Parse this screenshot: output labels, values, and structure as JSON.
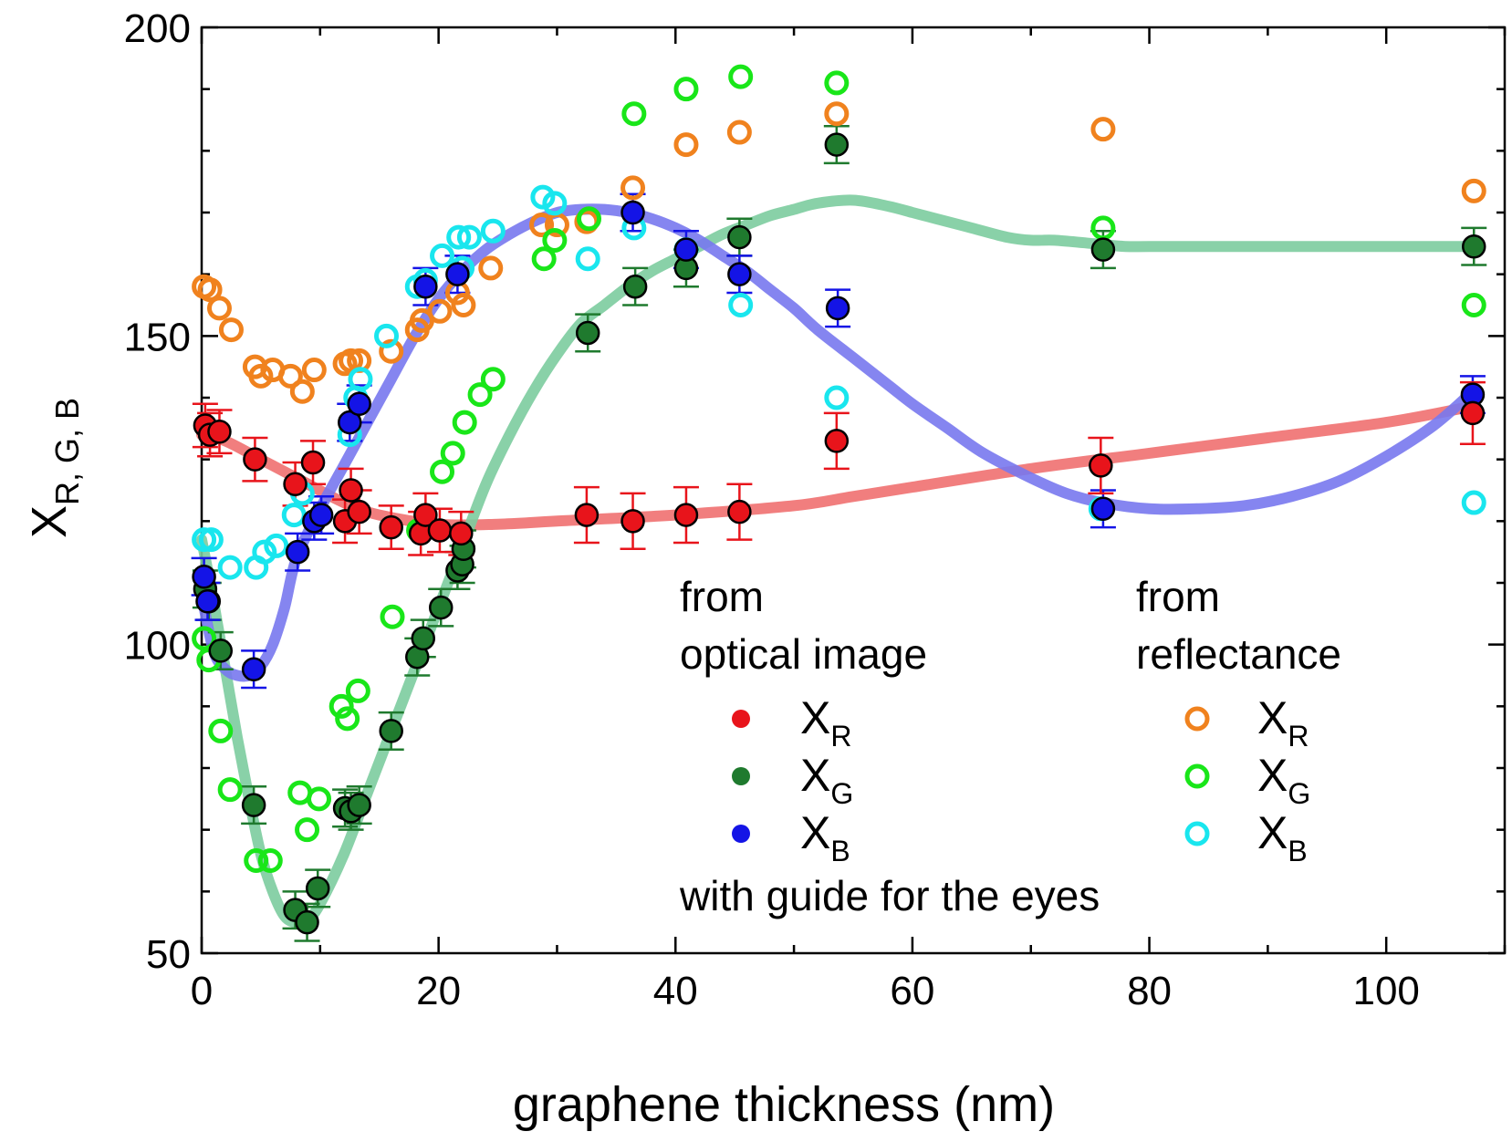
{
  "chart_data": {
    "type": "scatter",
    "xlabel": "graphene thickness (nm)",
    "ylabel": {
      "main": "X",
      "sub": "R, G, B"
    },
    "xlim": [
      0,
      110
    ],
    "ylim": [
      50,
      200
    ],
    "x_ticks": [
      0,
      20,
      40,
      60,
      80,
      100
    ],
    "y_ticks": [
      50,
      100,
      150,
      200
    ],
    "x_minor_step": 10,
    "y_minor_step": 10,
    "colors": {
      "opt_R": "#e8141b",
      "opt_G": "#1f7a2e",
      "opt_B": "#1414e6",
      "ref_R": "#f0821e",
      "ref_G": "#19e619",
      "ref_B": "#19e6ee",
      "guide_R": "#f07070",
      "guide_G": "#7ccc9e",
      "guide_B": "#7878ee"
    },
    "legend": {
      "left_header": [
        "from",
        "optical image"
      ],
      "right_header": [
        "from",
        "reflectance"
      ],
      "entries": [
        {
          "main": "X",
          "sub": "R"
        },
        {
          "main": "X",
          "sub": "G"
        },
        {
          "main": "X",
          "sub": "B"
        }
      ],
      "footer": "with guide for the eyes"
    },
    "series": [
      {
        "name": "optical X_R",
        "x": [
          0.3,
          0.7,
          1.5,
          4.5,
          7.9,
          9.4,
          12.1,
          12.6,
          13.3,
          16,
          18.5,
          18.9,
          20.1,
          21.9,
          32.5,
          36.4,
          40.9,
          45.4,
          53.6,
          75.9,
          107.3
        ],
        "y": [
          135.5,
          134,
          134.5,
          130,
          126,
          129.5,
          120,
          125,
          121.5,
          119,
          118,
          121,
          118.5,
          118,
          121,
          120,
          121,
          121.5,
          133,
          129,
          137.5
        ],
        "err": [
          3.5,
          3.5,
          3.5,
          3.5,
          3.5,
          3.5,
          3.5,
          3.5,
          3.5,
          3.5,
          3.5,
          3.5,
          3.5,
          3.5,
          4.5,
          4.5,
          4.5,
          4.5,
          4.5,
          4.5,
          5
        ]
      },
      {
        "name": "optical X_G",
        "x": [
          0.3,
          0.6,
          1.6,
          4.4,
          7.9,
          8.9,
          9.8,
          12.1,
          12.6,
          13.3,
          16,
          18.2,
          18.7,
          20.2,
          21.6,
          22,
          22.1,
          32.6,
          36.6,
          40.9,
          45.4,
          53.6,
          76.1,
          107.4
        ],
        "y": [
          109,
          107,
          99,
          74,
          57,
          55,
          60.5,
          73.5,
          73,
          74,
          86,
          98,
          101,
          106,
          112,
          113,
          115.5,
          150.5,
          158,
          161,
          166,
          181,
          164,
          164.5
        ],
        "err": [
          3,
          3,
          3,
          3,
          3,
          3,
          3,
          3,
          3,
          3,
          3,
          3,
          3,
          3,
          3,
          3,
          3,
          3,
          3,
          3,
          3,
          3,
          3,
          3
        ]
      },
      {
        "name": "optical X_B",
        "x": [
          0.2,
          0.5,
          4.4,
          8.1,
          9.5,
          10.1,
          12.5,
          13.3,
          18.9,
          21.6,
          36.4,
          40.9,
          45.4,
          53.7,
          76.1,
          107.3
        ],
        "y": [
          111,
          107,
          96,
          115,
          120,
          121,
          136,
          139,
          158,
          160,
          170,
          164,
          160,
          154.5,
          122,
          140.5
        ],
        "err": [
          3,
          3,
          3,
          3,
          3,
          3,
          3,
          3,
          3,
          3,
          3,
          3,
          3,
          3,
          3,
          3
        ]
      },
      {
        "name": "reflectance X_R",
        "x": [
          0.2,
          0.7,
          1.5,
          2.5,
          4.5,
          5,
          6,
          7.5,
          8.5,
          9.5,
          12.1,
          12.6,
          13.3,
          16,
          18.2,
          18.6,
          20.1,
          21.6,
          22.1,
          24.4,
          28.7,
          30,
          32.5,
          36.4,
          40.9,
          45.4,
          53.6,
          76.1,
          107.4
        ],
        "y": [
          158,
          157.5,
          154.5,
          151,
          145,
          143.5,
          144.5,
          143.5,
          141,
          144.5,
          145.5,
          146,
          146,
          147.5,
          151,
          152.5,
          154,
          157,
          155,
          161,
          168,
          168,
          168.5,
          174,
          181,
          183,
          186,
          183.5,
          173.5
        ]
      },
      {
        "name": "reflectance X_G",
        "x": [
          0.2,
          0.6,
          1.6,
          2.4,
          4.6,
          5.8,
          8.3,
          8.9,
          9.9,
          11.8,
          12.3,
          13.2,
          16.1,
          18.3,
          20.3,
          21.2,
          22.2,
          23.5,
          24.6,
          28.9,
          29.8,
          32.7,
          36.5,
          40.9,
          45.5,
          53.6,
          76.1,
          107.4
        ],
        "y": [
          101,
          97.5,
          86,
          76.5,
          65,
          65,
          76,
          70,
          75,
          90,
          88,
          92.5,
          104.5,
          118.5,
          128,
          131,
          136,
          140.5,
          143,
          162.5,
          165.5,
          169,
          186,
          190,
          192,
          191,
          167.5,
          155
        ]
      },
      {
        "name": "reflectance X_B",
        "x": [
          0.2,
          0.8,
          2.4,
          4.6,
          5.3,
          6.3,
          7.8,
          8.5,
          12.5,
          13,
          13.4,
          15.6,
          18.2,
          18.9,
          20.3,
          21.7,
          22,
          22.6,
          24.6,
          28.8,
          29.8,
          32.6,
          36.5,
          40.9,
          45.5,
          53.6,
          75.9,
          107.4
        ],
        "y": [
          117,
          117,
          112.5,
          112.5,
          115,
          116,
          121,
          124.5,
          134,
          140,
          143,
          150,
          158,
          159,
          163,
          166,
          161,
          166,
          167,
          172.5,
          171.5,
          162.5,
          167.5,
          164,
          155,
          140,
          122,
          123
        ]
      },
      {
        "name": "guide R",
        "x": [
          0,
          2,
          5,
          8,
          12,
          15,
          20,
          25,
          30,
          40,
          50,
          55,
          60,
          70,
          80,
          90,
          100,
          107
        ],
        "y": [
          134,
          133,
          130,
          127,
          123,
          121,
          119.5,
          119.5,
          120,
          121,
          122.5,
          124,
          125.5,
          128.5,
          131,
          133.5,
          136,
          138.5
        ]
      },
      {
        "name": "guide G",
        "x": [
          0,
          1,
          2,
          3,
          4,
          5,
          6,
          7,
          8,
          9,
          10,
          12,
          14,
          16,
          18,
          20,
          22,
          24,
          26,
          28,
          30,
          32,
          34,
          36,
          38,
          40,
          42,
          44,
          46,
          48,
          50,
          52,
          55,
          58,
          60,
          62,
          65,
          68,
          70,
          72,
          75,
          78,
          80,
          85,
          90,
          95,
          100,
          107
        ],
        "y": [
          117,
          107,
          96,
          85,
          75,
          66,
          60,
          56,
          55,
          55.5,
          58,
          66,
          76,
          86,
          96,
          106,
          116,
          126,
          134,
          141,
          147,
          152,
          155,
          158,
          160.5,
          162.5,
          164.5,
          166.5,
          168,
          169.5,
          170.5,
          171.5,
          172,
          171,
          170,
          169,
          167.5,
          166,
          165.5,
          165.5,
          165,
          164.5,
          164.5,
          164.5,
          164.5,
          164.5,
          164.5,
          164.5
        ]
      },
      {
        "name": "guide B",
        "x": [
          0,
          1,
          2,
          3,
          4,
          5,
          6,
          7,
          8,
          10,
          12,
          14,
          16,
          18,
          20,
          22,
          24,
          26,
          28,
          30,
          32,
          34,
          36,
          38,
          40,
          42,
          44,
          46,
          48,
          50,
          52,
          55,
          58,
          60,
          63,
          66,
          70,
          73,
          76,
          80,
          84,
          88,
          92,
          96,
          100,
          104,
          107
        ],
        "y": [
          108,
          99,
          96,
          95,
          95,
          96.5,
          100,
          106,
          114,
          122,
          129,
          136,
          143,
          150,
          156,
          160.5,
          164,
          166.5,
          168.5,
          170,
          170.5,
          170.5,
          170,
          169,
          167.5,
          165.5,
          163,
          160.5,
          157.5,
          154.5,
          151,
          146.5,
          142,
          139,
          135,
          131,
          127,
          124.5,
          123,
          122,
          122,
          122.5,
          124,
          126.5,
          130.5,
          135.5,
          140.5
        ]
      }
    ]
  }
}
